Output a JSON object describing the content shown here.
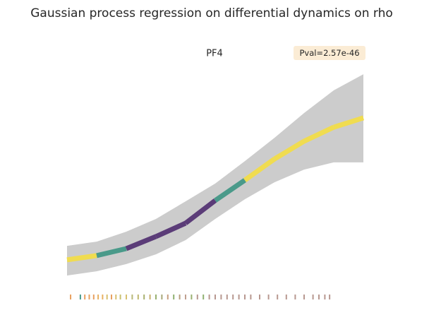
{
  "chart_data": {
    "type": "line",
    "title": "Gaussian process regression on differential dynamics on rho",
    "subtitle": "PF4",
    "annotation": "Pval=2.57e-46",
    "xlim": [
      0,
      1
    ],
    "ylim": [
      0,
      1
    ],
    "x": [
      0,
      0.1,
      0.2,
      0.3,
      0.4,
      0.5,
      0.6,
      0.7,
      0.8,
      0.9,
      1.0
    ],
    "series": [
      {
        "values": [
          0.107,
          0.127,
          0.16,
          0.217,
          0.28,
          0.387,
          0.483,
          0.583,
          0.667,
          0.733,
          0.777
        ],
        "segment_colors": [
          "#f0dc50",
          "#4a9a8a",
          "#5b3c78",
          "#5b3c78",
          "#5b3c78",
          "#4a9a8a",
          "#f0dc50",
          "#f0dc50",
          "#f0dc50",
          "#f0dc50"
        ]
      }
    ],
    "band": {
      "color": "#cccccc",
      "upper": [
        0.173,
        0.193,
        0.24,
        0.3,
        0.383,
        0.467,
        0.573,
        0.683,
        0.8,
        0.907,
        0.983
      ],
      "lower": [
        0.033,
        0.053,
        0.087,
        0.133,
        0.2,
        0.3,
        0.393,
        0.473,
        0.533,
        0.567,
        0.567
      ]
    },
    "rug": {
      "x": [
        0.012,
        0.045,
        0.06,
        0.075,
        0.09,
        0.105,
        0.12,
        0.135,
        0.15,
        0.165,
        0.18,
        0.2,
        0.22,
        0.24,
        0.26,
        0.28,
        0.3,
        0.32,
        0.34,
        0.36,
        0.38,
        0.4,
        0.42,
        0.44,
        0.46,
        0.48,
        0.5,
        0.52,
        0.54,
        0.56,
        0.58,
        0.6,
        0.62,
        0.65,
        0.68,
        0.71,
        0.74,
        0.77,
        0.8,
        0.83,
        0.85,
        0.87,
        0.886
      ],
      "colors": [
        "#e8a060",
        "#4a9a8a",
        "#e8a060",
        "#e8a060",
        "#e8a060",
        "#e8b060",
        "#e8b060",
        "#d8c070",
        "#e8a060",
        "#d8c070",
        "#c8c070",
        "#d8c070",
        "#b8b878",
        "#c0b870",
        "#a8b070",
        "#c8b070",
        "#98b070",
        "#a8a878",
        "#c8a080",
        "#8fb070",
        "#b8a080",
        "#c0a090",
        "#9ab070",
        "#b89890",
        "#8fb070",
        "#b89890",
        "#b89890",
        "#b89890",
        "#b89890",
        "#b89890",
        "#b89890",
        "#b89890",
        "#b89890",
        "#b89890",
        "#b89890",
        "#b89890",
        "#b89890",
        "#b89890",
        "#b89890",
        "#b89890",
        "#b89890",
        "#b89890",
        "#b89890"
      ]
    }
  }
}
